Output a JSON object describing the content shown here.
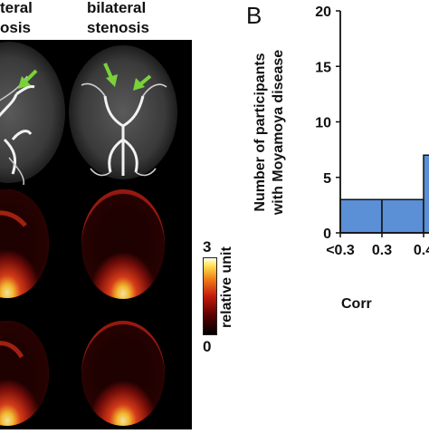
{
  "figure": {
    "left_column_label_line1": "teral",
    "left_column_label_line2": "osis",
    "right_column_label_line1": "bilateral",
    "right_column_label_line2": "stenosis",
    "panel_letter": "B",
    "colorbar": {
      "max_label": "3",
      "min_label": "0",
      "unit_label": "relative unit"
    }
  },
  "chart_data": {
    "type": "bar",
    "ylabel": "Number of participants with Moyamoya disease",
    "ylabel_line1": "Number of participants",
    "ylabel_line2": "with Moyamoya disease",
    "xlabel": "Corr",
    "ylim": [
      0,
      20
    ],
    "yticks": [
      "0",
      "5",
      "10",
      "15",
      "20"
    ],
    "xticks": [
      "<0.3",
      "0.3",
      "0.4"
    ],
    "bins": [
      {
        "range": "<0.3-0.3",
        "value": 3
      },
      {
        "range": "0.3-0.4",
        "value": 3
      },
      {
        "range": "0.4-",
        "value": 7
      }
    ],
    "bar_color": "#5b8fd6"
  }
}
